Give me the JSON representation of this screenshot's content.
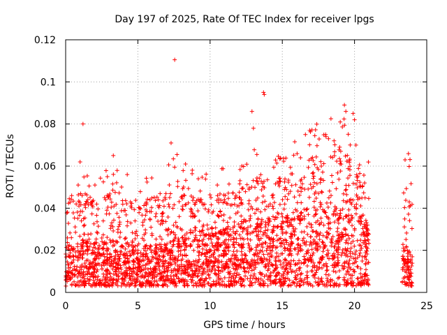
{
  "chart_data": {
    "type": "scatter",
    "title": "Day 197 of 2025, Rate Of TEC Index for receiver lpgs",
    "xlabel": "GPS time / hours",
    "ylabel": "ROTI / TECUs",
    "xlim": [
      0,
      25
    ],
    "ylim": [
      0,
      0.12
    ],
    "xticks": [
      "0",
      "5",
      "10",
      "15",
      "20",
      "25"
    ],
    "yticks": [
      "0",
      "0.02",
      "0.04",
      "0.06",
      "0.08",
      "0.1",
      "0.12"
    ],
    "grid": true,
    "marker": "+",
    "color": "#ff0000",
    "coverage": [
      [
        0,
        21
      ],
      [
        23.3,
        24
      ]
    ],
    "envelope": [
      {
        "x": 0.0,
        "base": 0.012,
        "peak": 0.045
      },
      {
        "x": 1.0,
        "base": 0.014,
        "peak": 0.048
      },
      {
        "x": 2.0,
        "base": 0.013,
        "peak": 0.045
      },
      {
        "x": 3.0,
        "base": 0.014,
        "peak": 0.05
      },
      {
        "x": 4.0,
        "base": 0.013,
        "peak": 0.045
      },
      {
        "x": 5.0,
        "base": 0.012,
        "peak": 0.045
      },
      {
        "x": 6.0,
        "base": 0.012,
        "peak": 0.045
      },
      {
        "x": 7.0,
        "base": 0.013,
        "peak": 0.048
      },
      {
        "x": 8.0,
        "base": 0.015,
        "peak": 0.055
      },
      {
        "x": 9.0,
        "base": 0.014,
        "peak": 0.045
      },
      {
        "x": 10.0,
        "base": 0.016,
        "peak": 0.045
      },
      {
        "x": 11.0,
        "base": 0.017,
        "peak": 0.048
      },
      {
        "x": 12.0,
        "base": 0.019,
        "peak": 0.05
      },
      {
        "x": 13.0,
        "base": 0.021,
        "peak": 0.055
      },
      {
        "x": 14.0,
        "base": 0.021,
        "peak": 0.055
      },
      {
        "x": 15.0,
        "base": 0.021,
        "peak": 0.055
      },
      {
        "x": 16.0,
        "base": 0.022,
        "peak": 0.06
      },
      {
        "x": 17.0,
        "base": 0.024,
        "peak": 0.065
      },
      {
        "x": 18.0,
        "base": 0.024,
        "peak": 0.065
      },
      {
        "x": 19.0,
        "base": 0.024,
        "peak": 0.07
      },
      {
        "x": 20.0,
        "base": 0.022,
        "peak": 0.06
      },
      {
        "x": 21.0,
        "base": 0.02,
        "peak": 0.05
      },
      {
        "x": 23.3,
        "base": 0.012,
        "peak": 0.05
      },
      {
        "x": 24.0,
        "base": 0.012,
        "peak": 0.055
      }
    ],
    "outliers": [
      {
        "x": 1.2,
        "y": 0.08
      },
      {
        "x": 1.0,
        "y": 0.062
      },
      {
        "x": 3.3,
        "y": 0.065
      },
      {
        "x": 7.3,
        "y": 0.071
      },
      {
        "x": 7.55,
        "y": 0.1105
      },
      {
        "x": 8.3,
        "y": 0.061
      },
      {
        "x": 10.5,
        "y": 0.051
      },
      {
        "x": 12.9,
        "y": 0.086
      },
      {
        "x": 13.0,
        "y": 0.078
      },
      {
        "x": 13.7,
        "y": 0.095
      },
      {
        "x": 13.75,
        "y": 0.094
      },
      {
        "x": 16.6,
        "y": 0.075
      },
      {
        "x": 16.9,
        "y": 0.077
      },
      {
        "x": 18.0,
        "y": 0.075
      },
      {
        "x": 18.2,
        "y": 0.073
      },
      {
        "x": 19.3,
        "y": 0.089
      },
      {
        "x": 19.4,
        "y": 0.086
      },
      {
        "x": 19.9,
        "y": 0.085
      },
      {
        "x": 20.0,
        "y": 0.082
      },
      {
        "x": 20.1,
        "y": 0.07
      },
      {
        "x": 23.5,
        "y": 0.063
      }
    ]
  }
}
